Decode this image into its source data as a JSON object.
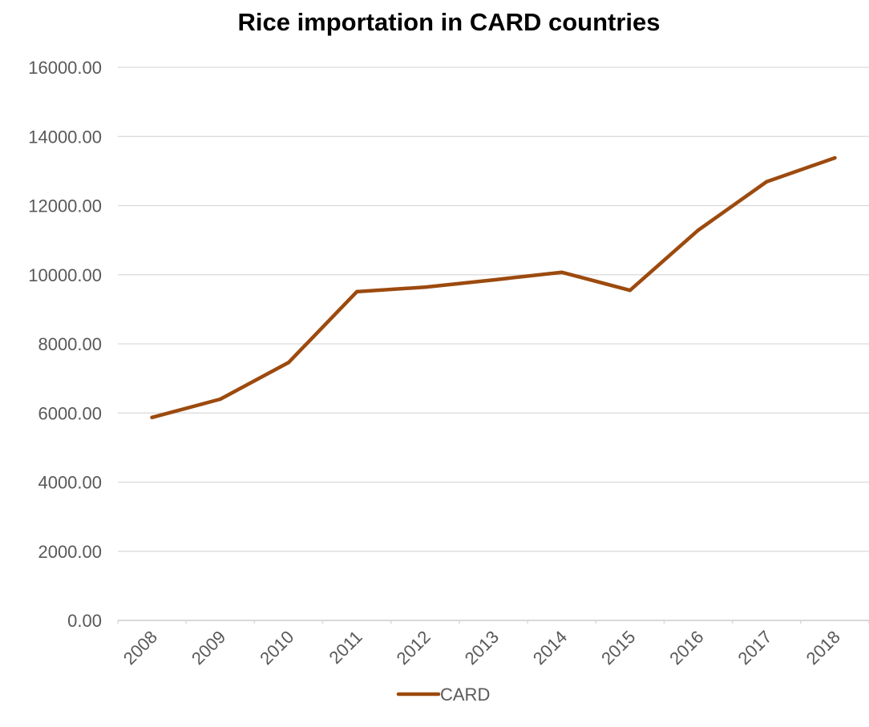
{
  "chart_data": {
    "type": "line",
    "title": "Rice importation in CARD countries",
    "xlabel": "",
    "ylabel": "",
    "categories": [
      "2008",
      "2009",
      "2010",
      "2011",
      "2012",
      "2013",
      "2014",
      "2015",
      "2016",
      "2017",
      "2018"
    ],
    "series": [
      {
        "name": "CARD",
        "color": "#9C4A0E",
        "values": [
          5870,
          6400,
          7460,
          9510,
          9640,
          9850,
          10070,
          9550,
          11290,
          12690,
          13380
        ]
      }
    ],
    "ylim": [
      0,
      16000
    ],
    "yticks": [
      0,
      2000,
      4000,
      6000,
      8000,
      10000,
      12000,
      14000,
      16000
    ],
    "ytick_labels": [
      "0.00",
      "2000.00",
      "4000.00",
      "6000.00",
      "8000.00",
      "10000.00",
      "12000.00",
      "14000.00",
      "16000.00"
    ],
    "grid": true,
    "legend": "bottom-center"
  },
  "colors": {
    "grid": "#D9D9D9",
    "axis": "#D9D9D9",
    "tick_text": "#595959",
    "series": "#9C4A0E"
  }
}
